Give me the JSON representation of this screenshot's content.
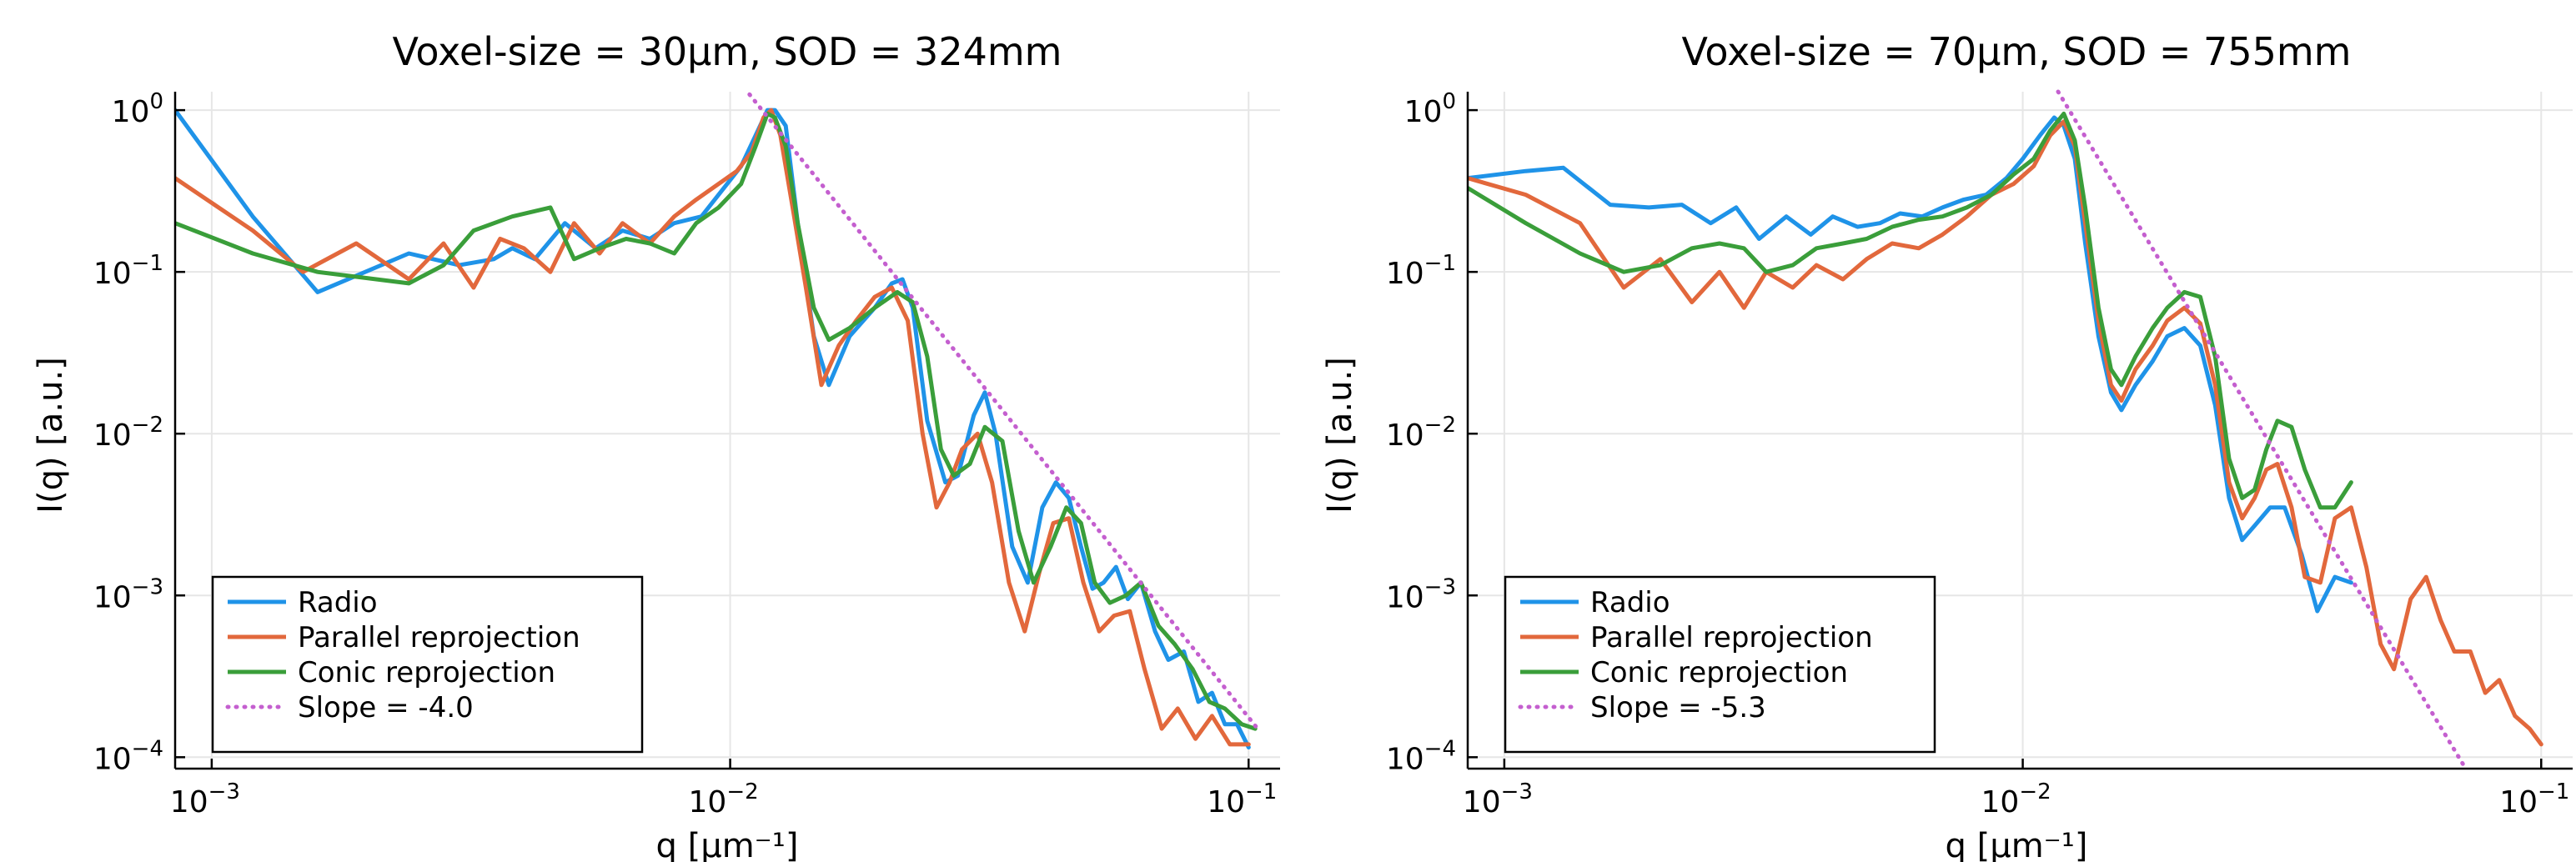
{
  "colors": {
    "radio": "#1f93e8",
    "parallel": "#e2683c",
    "conic": "#3a9e3a",
    "slope": "#c45fcf",
    "grid": "#e6e6e6",
    "axis": "#000000"
  },
  "chart_data": [
    {
      "type": "line",
      "title": "Voxel-size = 30µm, SOD = 324mm",
      "xlabel": "q [µm⁻¹]",
      "ylabel": "I(q) [a.u.]",
      "xscale": "log",
      "yscale": "log",
      "xlim": [
        0.00085,
        0.115
      ],
      "ylim": [
        8.5e-05,
        1.3
      ],
      "xticks": [
        {
          "base": "10",
          "exp": "−3",
          "value": 0.001
        },
        {
          "base": "10",
          "exp": "−2",
          "value": 0.01
        },
        {
          "base": "10",
          "exp": "−1",
          "value": 0.1
        }
      ],
      "yticks": [
        {
          "base": "10",
          "exp": "0",
          "value": 1
        },
        {
          "base": "10",
          "exp": "−1",
          "value": 0.1
        },
        {
          "base": "10",
          "exp": "−2",
          "value": 0.01
        },
        {
          "base": "10",
          "exp": "−3",
          "value": 0.001
        },
        {
          "base": "10",
          "exp": "−4",
          "value": 0.0001
        }
      ],
      "grid": true,
      "legend": "bottom-left",
      "series": [
        {
          "name": "Radio",
          "color_key": "radio",
          "style": "solid",
          "x": [
            0.00085,
            0.0012,
            0.0016,
            0.0024,
            0.003,
            0.0035,
            0.0038,
            0.0042,
            0.0048,
            0.0055,
            0.0062,
            0.007,
            0.0078,
            0.0088,
            0.0095,
            0.0105,
            0.0112,
            0.0118,
            0.0122,
            0.0128,
            0.0135,
            0.0145,
            0.0155,
            0.017,
            0.019,
            0.0205,
            0.0215,
            0.0225,
            0.024,
            0.026,
            0.0275,
            0.0295,
            0.031,
            0.0325,
            0.035,
            0.0375,
            0.04,
            0.0425,
            0.045,
            0.0475,
            0.05,
            0.0525,
            0.0555,
            0.0585,
            0.062,
            0.066,
            0.07,
            0.075,
            0.08,
            0.085,
            0.09,
            0.095,
            0.1
          ],
          "y": [
            1.0,
            0.22,
            0.075,
            0.13,
            0.11,
            0.12,
            0.14,
            0.12,
            0.2,
            0.14,
            0.18,
            0.16,
            0.2,
            0.22,
            0.3,
            0.45,
            0.7,
            1.0,
            1.0,
            0.8,
            0.2,
            0.04,
            0.02,
            0.04,
            0.06,
            0.085,
            0.09,
            0.06,
            0.012,
            0.005,
            0.0055,
            0.013,
            0.018,
            0.01,
            0.002,
            0.0012,
            0.0035,
            0.005,
            0.004,
            0.002,
            0.0011,
            0.0012,
            0.0015,
            0.00095,
            0.0012,
            0.0006,
            0.0004,
            0.00045,
            0.00022,
            0.00025,
            0.00016,
            0.00016,
            0.000115
          ]
        },
        {
          "name": "Parallel reprojection",
          "color_key": "parallel",
          "style": "solid",
          "x": [
            0.00085,
            0.0012,
            0.0015,
            0.0019,
            0.0024,
            0.0028,
            0.0032,
            0.0036,
            0.004,
            0.0045,
            0.005,
            0.0056,
            0.0062,
            0.007,
            0.0078,
            0.0086,
            0.0095,
            0.0103,
            0.011,
            0.0116,
            0.012,
            0.0125,
            0.0132,
            0.014,
            0.015,
            0.0162,
            0.0175,
            0.019,
            0.0205,
            0.022,
            0.0235,
            0.025,
            0.0265,
            0.028,
            0.03,
            0.032,
            0.0345,
            0.037,
            0.0395,
            0.042,
            0.045,
            0.048,
            0.0515,
            0.055,
            0.059,
            0.063,
            0.068,
            0.073,
            0.079,
            0.085,
            0.092,
            0.1
          ],
          "y": [
            0.38,
            0.18,
            0.1,
            0.15,
            0.09,
            0.15,
            0.08,
            0.16,
            0.14,
            0.1,
            0.2,
            0.13,
            0.2,
            0.15,
            0.22,
            0.28,
            0.35,
            0.42,
            0.55,
            0.9,
            1.0,
            0.7,
            0.25,
            0.08,
            0.02,
            0.035,
            0.05,
            0.07,
            0.08,
            0.05,
            0.01,
            0.0035,
            0.005,
            0.008,
            0.01,
            0.005,
            0.0012,
            0.0006,
            0.0014,
            0.0028,
            0.003,
            0.0012,
            0.0006,
            0.00075,
            0.0008,
            0.00035,
            0.00015,
            0.0002,
            0.00013,
            0.00018,
            0.00012,
            0.00012
          ]
        },
        {
          "name": "Conic reprojection",
          "color_key": "conic",
          "style": "solid",
          "x": [
            0.00085,
            0.0012,
            0.0016,
            0.0024,
            0.0028,
            0.0032,
            0.0038,
            0.0045,
            0.005,
            0.0056,
            0.0063,
            0.007,
            0.0078,
            0.0086,
            0.0095,
            0.0105,
            0.0112,
            0.0118,
            0.0122,
            0.0128,
            0.0135,
            0.0145,
            0.0155,
            0.017,
            0.019,
            0.021,
            0.0225,
            0.024,
            0.0255,
            0.027,
            0.029,
            0.031,
            0.0335,
            0.036,
            0.0385,
            0.0415,
            0.0445,
            0.0475,
            0.0505,
            0.054,
            0.058,
            0.062,
            0.067,
            0.072,
            0.078,
            0.084,
            0.09,
            0.097,
            0.103
          ],
          "y": [
            0.2,
            0.13,
            0.1,
            0.085,
            0.11,
            0.18,
            0.22,
            0.25,
            0.12,
            0.14,
            0.16,
            0.15,
            0.13,
            0.2,
            0.25,
            0.35,
            0.6,
            0.95,
            0.9,
            0.6,
            0.2,
            0.06,
            0.038,
            0.045,
            0.06,
            0.075,
            0.065,
            0.03,
            0.008,
            0.0055,
            0.0065,
            0.011,
            0.009,
            0.0025,
            0.0012,
            0.002,
            0.0035,
            0.0028,
            0.0012,
            0.0009,
            0.001,
            0.0012,
            0.00065,
            0.0005,
            0.00035,
            0.00022,
            0.0002,
            0.00016,
            0.00015
          ]
        },
        {
          "name": "Slope = -4.0",
          "color_key": "slope",
          "style": "dotted",
          "x": [
            0.0109,
            0.105
          ],
          "y": [
            1.25,
            0.000145
          ]
        }
      ]
    },
    {
      "type": "line",
      "title": "Voxel-size = 70µm, SOD = 755mm",
      "xlabel": "q [µm⁻¹]",
      "ylabel": "I(q) [a.u.]",
      "xscale": "log",
      "yscale": "log",
      "xlim": [
        0.00085,
        0.115
      ],
      "ylim": [
        8.5e-05,
        1.3
      ],
      "xticks": [
        {
          "base": "10",
          "exp": "−3",
          "value": 0.001
        },
        {
          "base": "10",
          "exp": "−2",
          "value": 0.01
        },
        {
          "base": "10",
          "exp": "−1",
          "value": 0.1
        }
      ],
      "yticks": [
        {
          "base": "10",
          "exp": "0",
          "value": 1
        },
        {
          "base": "10",
          "exp": "−1",
          "value": 0.1
        },
        {
          "base": "10",
          "exp": "−2",
          "value": 0.01
        },
        {
          "base": "10",
          "exp": "−3",
          "value": 0.001
        },
        {
          "base": "10",
          "exp": "−4",
          "value": 0.0001
        }
      ],
      "grid": true,
      "legend": "bottom-left",
      "series": [
        {
          "name": "Radio",
          "color_key": "radio",
          "style": "solid",
          "x": [
            0.00085,
            0.0011,
            0.0013,
            0.0016,
            0.0019,
            0.0022,
            0.0025,
            0.0028,
            0.0031,
            0.0035,
            0.0039,
            0.0043,
            0.0048,
            0.0053,
            0.0058,
            0.0064,
            0.007,
            0.0077,
            0.0085,
            0.0093,
            0.01,
            0.0108,
            0.0115,
            0.012,
            0.0126,
            0.0132,
            0.014,
            0.0148,
            0.0155,
            0.0165,
            0.0178,
            0.019,
            0.0205,
            0.022,
            0.0235,
            0.025,
            0.0265,
            0.028,
            0.03,
            0.032,
            0.0345,
            0.037,
            0.04,
            0.043
          ],
          "y": [
            0.38,
            0.42,
            0.44,
            0.26,
            0.25,
            0.26,
            0.2,
            0.25,
            0.16,
            0.22,
            0.17,
            0.22,
            0.19,
            0.2,
            0.23,
            0.22,
            0.25,
            0.28,
            0.3,
            0.38,
            0.5,
            0.7,
            0.9,
            0.8,
            0.5,
            0.15,
            0.04,
            0.018,
            0.014,
            0.02,
            0.028,
            0.04,
            0.045,
            0.035,
            0.015,
            0.004,
            0.0022,
            0.0027,
            0.0035,
            0.0035,
            0.0018,
            0.0008,
            0.0013,
            0.0012
          ]
        },
        {
          "name": "Parallel reprojection",
          "color_key": "parallel",
          "style": "solid",
          "x": [
            0.00085,
            0.0011,
            0.0014,
            0.0017,
            0.002,
            0.0023,
            0.0026,
            0.0029,
            0.0032,
            0.0036,
            0.004,
            0.0045,
            0.005,
            0.0056,
            0.0063,
            0.007,
            0.0078,
            0.0087,
            0.0096,
            0.0105,
            0.0113,
            0.012,
            0.0126,
            0.0132,
            0.014,
            0.0148,
            0.0155,
            0.0165,
            0.0178,
            0.019,
            0.0205,
            0.022,
            0.0235,
            0.025,
            0.0265,
            0.028,
            0.0295,
            0.031,
            0.033,
            0.035,
            0.0375,
            0.04,
            0.043,
            0.046,
            0.049,
            0.052,
            0.056,
            0.06,
            0.064,
            0.068,
            0.073,
            0.078,
            0.083,
            0.089,
            0.095,
            0.1
          ],
          "y": [
            0.38,
            0.3,
            0.2,
            0.08,
            0.12,
            0.065,
            0.1,
            0.06,
            0.1,
            0.08,
            0.11,
            0.09,
            0.12,
            0.15,
            0.14,
            0.17,
            0.22,
            0.3,
            0.35,
            0.45,
            0.7,
            0.85,
            0.6,
            0.2,
            0.05,
            0.02,
            0.016,
            0.025,
            0.035,
            0.05,
            0.06,
            0.048,
            0.02,
            0.005,
            0.003,
            0.004,
            0.006,
            0.0065,
            0.0035,
            0.0013,
            0.0012,
            0.003,
            0.0035,
            0.0015,
            0.0005,
            0.00035,
            0.00095,
            0.0013,
            0.0007,
            0.00045,
            0.00045,
            0.00025,
            0.0003,
            0.00018,
            0.00015,
            0.00012
          ]
        },
        {
          "name": "Conic reprojection",
          "color_key": "conic",
          "style": "solid",
          "x": [
            0.00085,
            0.0011,
            0.0014,
            0.0017,
            0.002,
            0.0023,
            0.0026,
            0.0029,
            0.0032,
            0.0036,
            0.004,
            0.0045,
            0.005,
            0.0056,
            0.0063,
            0.007,
            0.0078,
            0.0087,
            0.0096,
            0.0105,
            0.0113,
            0.012,
            0.0126,
            0.0132,
            0.014,
            0.0148,
            0.0155,
            0.0165,
            0.0178,
            0.019,
            0.0205,
            0.022,
            0.0235,
            0.025,
            0.0265,
            0.028,
            0.0295,
            0.031,
            0.033,
            0.035,
            0.0375,
            0.04,
            0.043
          ],
          "y": [
            0.33,
            0.2,
            0.13,
            0.1,
            0.11,
            0.14,
            0.15,
            0.14,
            0.1,
            0.11,
            0.14,
            0.15,
            0.16,
            0.19,
            0.21,
            0.22,
            0.25,
            0.3,
            0.4,
            0.5,
            0.75,
            0.95,
            0.65,
            0.25,
            0.06,
            0.025,
            0.02,
            0.03,
            0.045,
            0.06,
            0.075,
            0.07,
            0.03,
            0.007,
            0.004,
            0.0045,
            0.008,
            0.012,
            0.011,
            0.006,
            0.0035,
            0.0035,
            0.005
          ]
        },
        {
          "name": "Slope = -5.3",
          "color_key": "slope",
          "style": "dotted",
          "x": [
            0.0117,
            0.0715
          ],
          "y": [
            1.3,
            8.5e-05
          ]
        }
      ]
    }
  ]
}
